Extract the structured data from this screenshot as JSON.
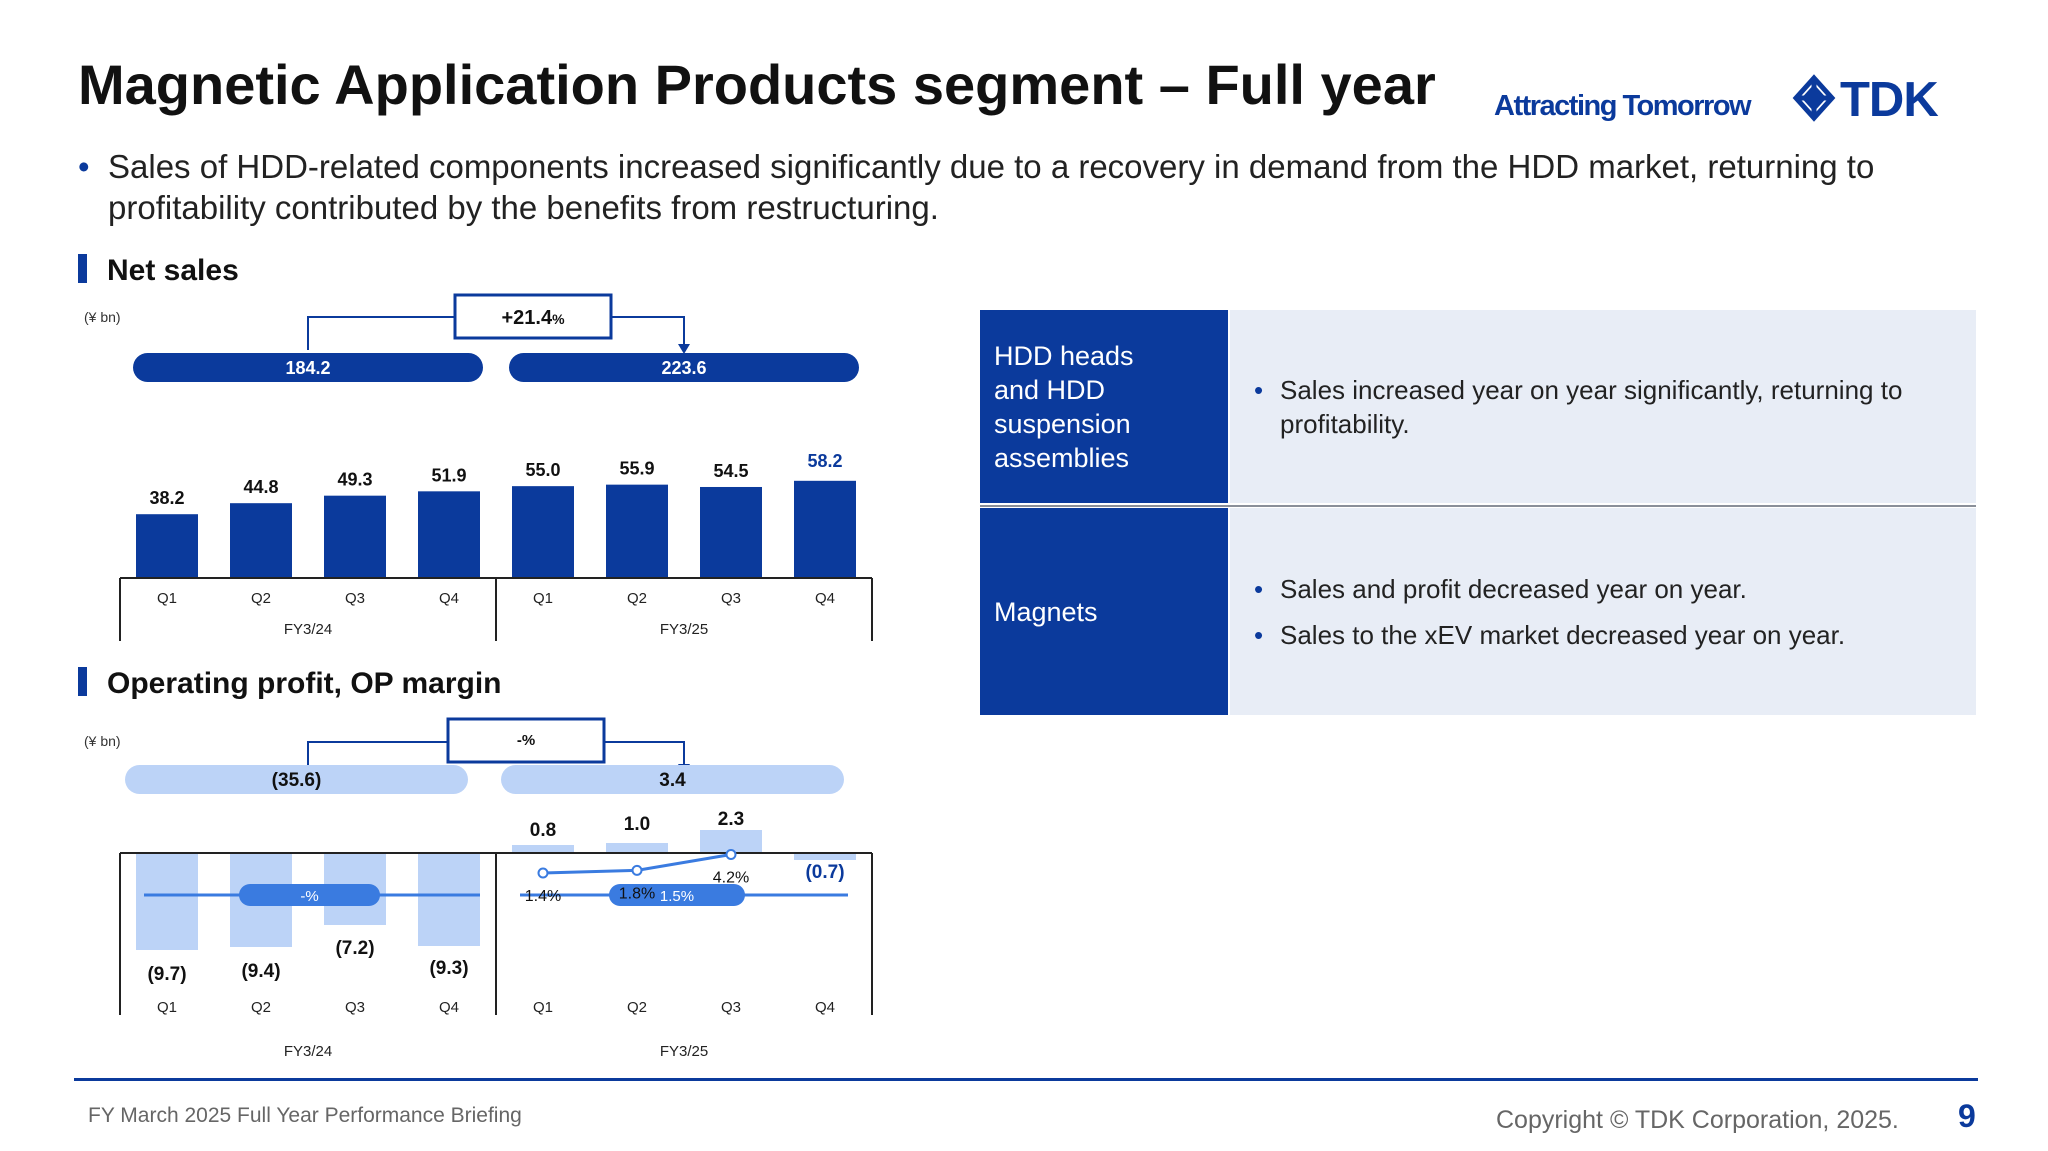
{
  "header": {
    "title": "Magnetic Application Products segment – Full year",
    "tagline": "Attracting Tomorrow",
    "logo_text": "TDK"
  },
  "summary": {
    "bullet": "Sales of HDD-related components increased significantly due to a recovery in demand from the HDD market, returning to profitability contributed by the benefits from restructuring."
  },
  "net_sales": {
    "heading": "Net sales"
  },
  "op_profit": {
    "heading": "Operating profit, OP margin"
  },
  "table": {
    "rows": [
      {
        "category": "HDD heads\nand HDD\nsuspension\nassemblies",
        "items": [
          "Sales increased year on year significantly, returning to profitability."
        ]
      },
      {
        "category": "Magnets",
        "items": [
          "Sales and profit decreased year on year.",
          "Sales to the xEV market decreased year on year."
        ]
      }
    ]
  },
  "footer": {
    "left": "FY March 2025 Full Year Performance Briefing",
    "right": "Copyright  © TDK Corporation, 2025.",
    "page": "9"
  },
  "colors": {
    "brand_blue": "#0b3a9c",
    "light_blue": "#bcd3f7",
    "mid_blue": "#3a7be0",
    "panel_bg": "#e8edf6"
  },
  "chart_data": [
    {
      "type": "bar",
      "unit": "(¥ bn)",
      "categories": [
        "Q1",
        "Q2",
        "Q3",
        "Q4",
        "Q1",
        "Q2",
        "Q3",
        "Q4"
      ],
      "groups": [
        {
          "label": "FY3/24",
          "total": "184.2"
        },
        {
          "label": "FY3/25",
          "total": "223.6"
        }
      ],
      "series": [
        {
          "values": [
            38.2,
            44.8,
            49.3,
            51.9,
            55.0,
            55.9,
            54.5,
            58.2
          ]
        }
      ],
      "value_labels": [
        "38.2",
        "44.8",
        "49.3",
        "51.9",
        "55.0",
        "55.9",
        "54.5",
        "58.2"
      ],
      "change": {
        "value": "+21.4",
        "suffix": "%"
      },
      "highlight_last": true
    },
    {
      "type": "bar",
      "unit": "(¥ bn)",
      "categories": [
        "Q1",
        "Q2",
        "Q3",
        "Q4",
        "Q1",
        "Q2",
        "Q3",
        "Q4"
      ],
      "groups": [
        {
          "label": "FY3/24",
          "total": "(35.6)",
          "margin_label": "-%"
        },
        {
          "label": "FY3/25",
          "total": "3.4",
          "margin_label": "1.5%"
        }
      ],
      "series": [
        {
          "values": [
            -9.7,
            -9.4,
            -7.2,
            -9.3,
            0.8,
            1.0,
            2.3,
            -0.7
          ]
        }
      ],
      "value_labels": [
        "(9.7)",
        "(9.4)",
        "(7.2)",
        "(9.3)",
        "0.8",
        "1.0",
        "2.3",
        "(0.7)"
      ],
      "op_margin": {
        "values": [
          null,
          null,
          null,
          null,
          1.4,
          1.8,
          4.2,
          null
        ],
        "labels": [
          "",
          "",
          "",
          "",
          "1.4%",
          "1.8%",
          "4.2%",
          ""
        ]
      },
      "change": {
        "value": "-%",
        "suffix": ""
      }
    }
  ]
}
